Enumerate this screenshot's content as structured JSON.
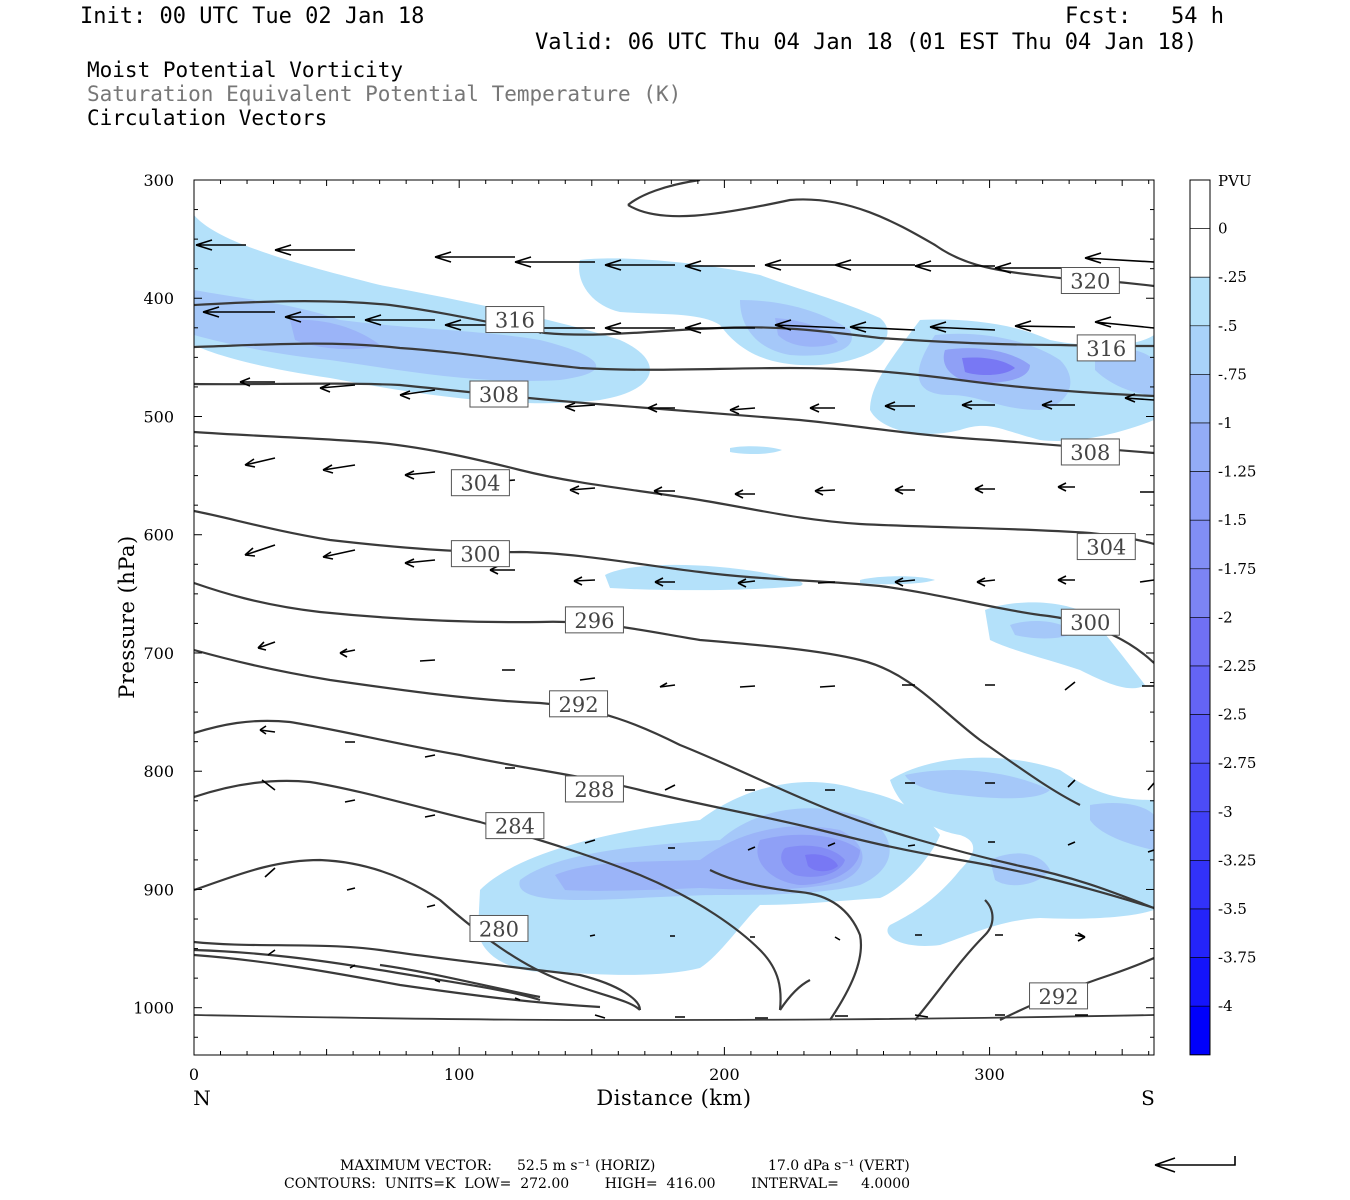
{
  "header": {
    "init": "Init: 00 UTC Tue 02 Jan 18",
    "fcst": "Fcst:   54 h",
    "valid": "Valid: 06 UTC Thu 04 Jan 18 (01 EST Thu 04 Jan 18)"
  },
  "legend_lines": [
    "Moist Potential Vorticity",
    "Saturation Equivalent Potential Temperature (K)",
    "Circulation Vectors"
  ],
  "footer": {
    "max_vector_label": "MAXIMUM VECTOR:",
    "max_vector_horiz": "52.5 m s⁻¹ (HORIZ)",
    "max_vector_vert": "17.0 dPa s⁻¹ (VERT)",
    "contours_line": "CONTOURS:  UNITS=K  LOW=  272.00        HIGH=  416.00        INTERVAL=     4.0000"
  },
  "colors": {
    "contour": "#3a3a3a",
    "pv_fill": [
      "#b4e1fa",
      "#a5c8f9",
      "#9bb4f8",
      "#8fa0f6",
      "#838cf5",
      "#7878f4",
      "#6464f5",
      "#5050f6",
      "#3c3cf7",
      "#2828f8",
      "#1414fa",
      "#0000fc"
    ]
  },
  "chart_data": {
    "type": "cross-section",
    "xlabel": "Distance (km)",
    "ylabel": "Pressure (hPa)",
    "x_left_label": "N",
    "x_right_label": "S",
    "xlim": [
      0,
      362
    ],
    "ylim": [
      1040,
      300
    ],
    "x_ticks": [
      0,
      100,
      200,
      300
    ],
    "y_ticks": [
      300,
      400,
      500,
      600,
      700,
      800,
      900,
      1000
    ],
    "colorbar": {
      "title": "PVU",
      "tick_labels": [
        "0",
        "-.25",
        "-.5",
        "-.75",
        "-1",
        "-1.25",
        "-1.5",
        "-1.75",
        "-2",
        "-2.25",
        "-2.5",
        "-2.75",
        "-3",
        "-3.25",
        "-3.5",
        "-3.75",
        "-4"
      ]
    },
    "contour_levels_labeled": [
      {
        "value": "320",
        "x": 338,
        "p": 385
      },
      {
        "value": "316",
        "x": 121,
        "p": 418
      },
      {
        "value": "316",
        "x": 344,
        "p": 442
      },
      {
        "value": "308",
        "x": 115,
        "p": 481
      },
      {
        "value": "308",
        "x": 338,
        "p": 530
      },
      {
        "value": "304",
        "x": 108,
        "p": 556
      },
      {
        "value": "304",
        "x": 344,
        "p": 610
      },
      {
        "value": "300",
        "x": 108,
        "p": 616
      },
      {
        "value": "300",
        "x": 338,
        "p": 674
      },
      {
        "value": "296",
        "x": 151,
        "p": 672
      },
      {
        "value": "292",
        "x": 145,
        "p": 743
      },
      {
        "value": "292",
        "x": 326,
        "p": 990
      },
      {
        "value": "288",
        "x": 151,
        "p": 815
      },
      {
        "value": "284",
        "x": 121,
        "p": 846
      },
      {
        "value": "280",
        "x": 115,
        "p": 933
      }
    ]
  }
}
